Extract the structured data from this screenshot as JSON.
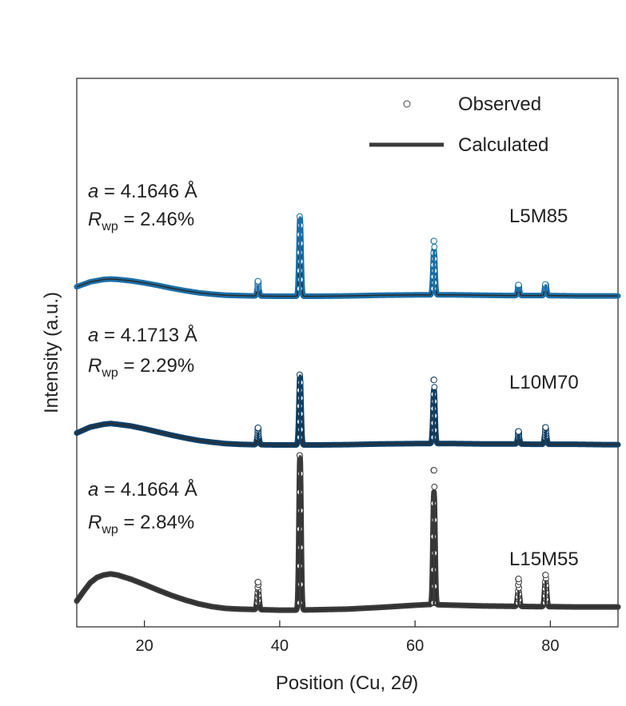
{
  "chart_data": {
    "type": "line",
    "title": "",
    "xlabel": "Position (Cu, 2θ)",
    "xlabel_main": "Position (Cu, 2",
    "xlabel_theta": "θ",
    "xlabel_close": ")",
    "ylabel": "Intensity (a.u.)",
    "xlim": [
      10,
      90
    ],
    "xticks": [
      20,
      40,
      60,
      80
    ],
    "yticks": [],
    "legend": {
      "position": "top-right",
      "observed_label": "Observed",
      "calculated_label": "Calculated",
      "calculated_color": "#3a3a3a"
    },
    "series": [
      {
        "name": "L5M85",
        "color": "#1a6fa8",
        "a_label": "a",
        "a_value": " = 4.1646 Å",
        "r_label": "R",
        "r_sub": "wp",
        "r_value": " = 2.46%",
        "profile": {
          "x": [
            10,
            12,
            14,
            15,
            16,
            18,
            20,
            22,
            24,
            26,
            28,
            30,
            32,
            34,
            36,
            38,
            40,
            42,
            45,
            50,
            55,
            60,
            62,
            64,
            66,
            70,
            74,
            78,
            80,
            84,
            88,
            90
          ],
          "y": [
            0.28,
            0.42,
            0.49,
            0.5,
            0.49,
            0.45,
            0.39,
            0.32,
            0.24,
            0.17,
            0.11,
            0.07,
            0.04,
            0.03,
            0.02,
            0.015,
            0.01,
            0.01,
            0.01,
            0.02,
            0.04,
            0.05,
            0.05,
            0.05,
            0.05,
            0.04,
            0.03,
            0.03,
            0.03,
            0.02,
            0.02,
            0.02
          ]
        },
        "peaks": [
          {
            "x": 36.8,
            "calc_height": 0.3,
            "obs_height": 0.42
          },
          {
            "x": 43.0,
            "calc_height": 2.27,
            "obs_height": 2.27
          },
          {
            "x": 62.8,
            "calc_height": 1.28,
            "obs_height": 1.53
          },
          {
            "x": 75.3,
            "calc_height": 0.25,
            "obs_height": 0.3
          },
          {
            "x": 79.3,
            "calc_height": 0.32,
            "obs_height": 0.32
          }
        ]
      },
      {
        "name": "L10M70",
        "color": "#0e3f66",
        "a_label": "a",
        "a_value": " = 4.1713 Å",
        "r_label": "R",
        "r_sub": "wp",
        "r_value": " = 2.29%",
        "profile": {
          "x": [
            10,
            12,
            14,
            15,
            16,
            18,
            20,
            22,
            24,
            26,
            28,
            30,
            32,
            34,
            36,
            38,
            40,
            42,
            45,
            50,
            55,
            60,
            62,
            64,
            66,
            70,
            74,
            78,
            80,
            84,
            88,
            90
          ],
          "y": [
            0.35,
            0.52,
            0.6,
            0.62,
            0.6,
            0.55,
            0.47,
            0.38,
            0.29,
            0.21,
            0.14,
            0.09,
            0.05,
            0.03,
            0.02,
            0.015,
            0.01,
            0.01,
            0.01,
            0.02,
            0.04,
            0.05,
            0.05,
            0.05,
            0.05,
            0.04,
            0.04,
            0.03,
            0.03,
            0.03,
            0.02,
            0.02
          ]
        },
        "peaks": [
          {
            "x": 36.8,
            "calc_height": 0.35,
            "obs_height": 0.48
          },
          {
            "x": 43.0,
            "calc_height": 2.0,
            "obs_height": 2.0
          },
          {
            "x": 62.8,
            "calc_height": 1.55,
            "obs_height": 1.81
          },
          {
            "x": 75.3,
            "calc_height": 0.26,
            "obs_height": 0.36
          },
          {
            "x": 79.3,
            "calc_height": 0.4,
            "obs_height": 0.48
          }
        ]
      },
      {
        "name": "L15M55",
        "color": "#3a3a3a",
        "a_label": "a",
        "a_value": " = 4.1664 Å",
        "r_label": "R",
        "r_sub": "wp",
        "r_value": " = 2.84%",
        "profile": {
          "x": [
            10,
            11,
            12,
            13,
            14,
            15,
            16,
            18,
            20,
            22,
            24,
            26,
            28,
            30,
            32,
            34,
            36,
            38,
            40,
            42,
            45,
            50,
            55,
            60,
            62,
            64,
            66,
            70,
            74,
            78,
            80,
            84,
            88,
            90
          ],
          "y": [
            0.28,
            0.55,
            0.8,
            0.95,
            1.02,
            1.05,
            1.02,
            0.9,
            0.75,
            0.59,
            0.44,
            0.31,
            0.2,
            0.12,
            0.07,
            0.05,
            0.04,
            0.03,
            0.02,
            0.02,
            0.03,
            0.05,
            0.1,
            0.16,
            0.18,
            0.17,
            0.16,
            0.14,
            0.13,
            0.12,
            0.12,
            0.11,
            0.11,
            0.11
          ]
        },
        "peaks": [
          {
            "x": 36.8,
            "calc_height": 0.55,
            "obs_height": 0.78
          },
          {
            "x": 43.0,
            "calc_height": 4.4,
            "obs_height": 4.4
          },
          {
            "x": 62.8,
            "calc_height": 3.2,
            "obs_height": 3.82
          },
          {
            "x": 75.3,
            "calc_height": 0.45,
            "obs_height": 0.78
          },
          {
            "x": 79.3,
            "calc_height": 0.75,
            "obs_height": 0.9
          }
        ]
      }
    ]
  }
}
